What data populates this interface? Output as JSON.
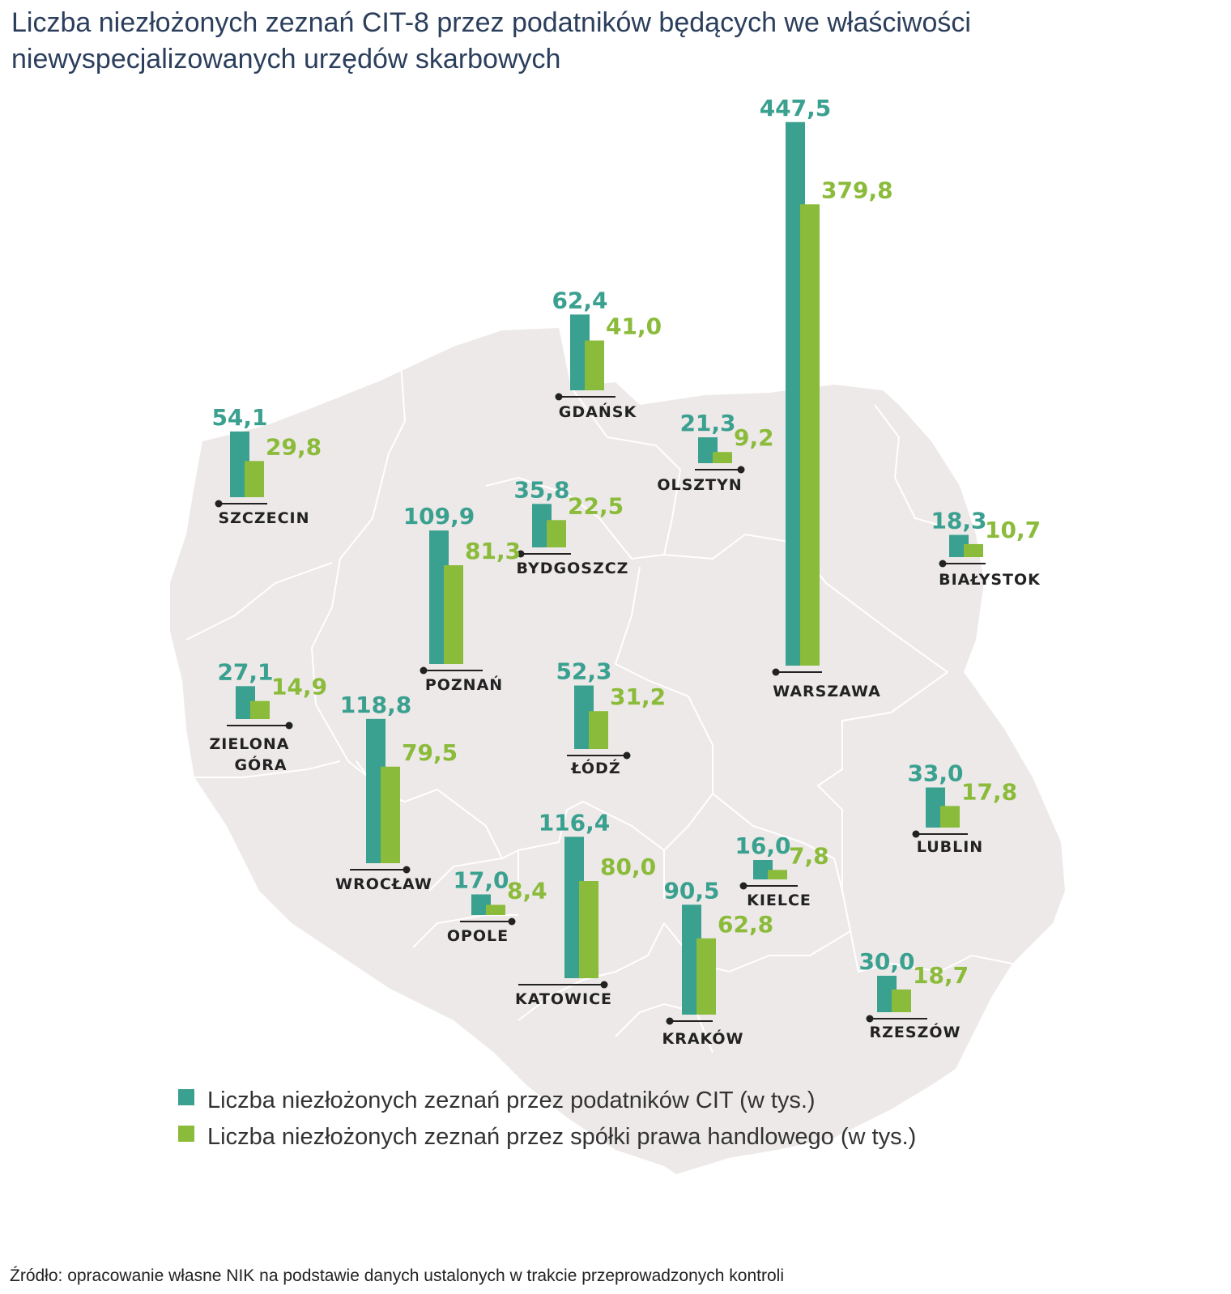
{
  "title": "Liczba niezłożonych zeznań CIT-8 przez podatników będących we właściwości niewyspecjalizowanych urzędów skarbowych",
  "source": "Źródło: opracowanie własne NIK na podstawie danych ustalonych w trakcie przeprowadzonych kontroli",
  "colors": {
    "cit": "#3aa08f",
    "spolki": "#8bbb3a",
    "map": "#ede9e8",
    "map_border": "#ffffff"
  },
  "chart_data": {
    "type": "bar",
    "categories": [
      "SZCZECIN",
      "GDAŃSK",
      "OLSZTYN",
      "BYDGOSZCZ",
      "POZNAŃ",
      "WARSZAWA",
      "BIAŁYSTOK",
      "ZIELONA GÓRA",
      "ŁÓDŹ",
      "WROCŁAW",
      "LUBLIN",
      "OPOLE",
      "KATOWICE",
      "KIELCE",
      "KRAKÓW",
      "RZESZÓW"
    ],
    "category_labels": [
      [
        "SZCZECIN"
      ],
      [
        "GDAŃSK"
      ],
      [
        "OLSZTYN"
      ],
      [
        "BYDGOSZCZ"
      ],
      [
        "POZNAŃ"
      ],
      [
        "WARSZAWA"
      ],
      [
        "BIAŁYSTOK"
      ],
      [
        "ZIELONA",
        "GÓRA"
      ],
      [
        "ŁÓDŹ"
      ],
      [
        "WROCŁAW"
      ],
      [
        "LUBLIN"
      ],
      [
        "OPOLE"
      ],
      [
        "KATOWICE"
      ],
      [
        "KIELCE"
      ],
      [
        "KRAKÓW"
      ],
      [
        "RZESZÓW"
      ]
    ],
    "series": [
      {
        "name": "Liczba niezłożonych zeznań przez podatników CIT (w tys.)",
        "values": [
          54.1,
          62.4,
          21.3,
          35.8,
          109.9,
          447.5,
          18.3,
          27.1,
          52.3,
          118.8,
          33.0,
          17.0,
          116.4,
          16.0,
          90.5,
          30.0
        ],
        "labels": [
          "54,1",
          "62,4",
          "21,3",
          "35,8",
          "109,9",
          "447,5",
          "18,3",
          "27,1",
          "52,3",
          "118,8",
          "33,0",
          "17,0",
          "116,4",
          "16,0",
          "90,5",
          "30,0"
        ]
      },
      {
        "name": "Liczba niezłożonych zeznań przez spółki prawa handlowego (w tys.)",
        "values": [
          29.8,
          41.0,
          9.2,
          22.5,
          81.3,
          379.8,
          10.7,
          14.9,
          31.2,
          79.5,
          17.8,
          8.4,
          80.0,
          7.8,
          62.8,
          18.7
        ],
        "labels": [
          "29,8",
          "41,0",
          "9,2",
          "22,5",
          "81,3",
          "379,8",
          "10,7",
          "14,9",
          "31,2",
          "79,5",
          "17,8",
          "8,4",
          "80,0",
          "7,8",
          "62,8",
          "18,7"
        ]
      }
    ]
  }
}
